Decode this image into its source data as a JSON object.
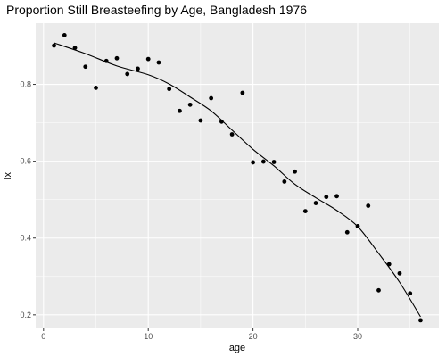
{
  "chart_data": {
    "type": "scatter",
    "title": "Proportion Still Breasteefing by Age, Bangladesh 1976",
    "xlabel": "age",
    "ylabel": "lx",
    "xlim": [
      -0.75,
      37.75
    ],
    "ylim": [
      0.1648,
      0.9592
    ],
    "x_ticks": [
      0,
      10,
      20,
      30
    ],
    "y_ticks": [
      0.2,
      0.4,
      0.6,
      0.8
    ],
    "x_tick_labels": [
      "0",
      "10",
      "20",
      "30"
    ],
    "y_tick_labels": [
      "0.2",
      "0.4",
      "0.6",
      "0.8"
    ],
    "grid": true,
    "legend": "none",
    "panel_color": "#ebebeb",
    "grid_color": "#ffffff",
    "point_color": "#000000",
    "line_color": "#000000",
    "points": {
      "x": [
        1,
        2,
        3,
        4,
        5,
        6,
        7,
        8,
        9,
        10,
        11,
        12,
        13,
        14,
        15,
        16,
        17,
        18,
        19,
        20,
        21,
        22,
        23,
        24,
        25,
        26,
        27,
        28,
        29,
        30,
        31,
        32,
        33,
        34,
        35,
        36
      ],
      "y": [
        0.901,
        0.928,
        0.895,
        0.846,
        0.791,
        0.861,
        0.868,
        0.827,
        0.841,
        0.866,
        0.857,
        0.788,
        0.731,
        0.747,
        0.706,
        0.764,
        0.703,
        0.67,
        0.778,
        0.597,
        0.599,
        0.598,
        0.547,
        0.573,
        0.47,
        0.491,
        0.507,
        0.509,
        0.415,
        0.431,
        0.484,
        0.264,
        0.332,
        0.308,
        0.256,
        0.186
      ]
    },
    "smooth": {
      "x": [
        1,
        4,
        7,
        10,
        12,
        14,
        16,
        18,
        20,
        22,
        24,
        26,
        28,
        30,
        32,
        34,
        36
      ],
      "y": [
        0.908,
        0.88,
        0.848,
        0.825,
        0.801,
        0.767,
        0.731,
        0.681,
        0.631,
        0.588,
        0.54,
        0.505,
        0.472,
        0.43,
        0.36,
        0.285,
        0.195
      ]
    }
  }
}
